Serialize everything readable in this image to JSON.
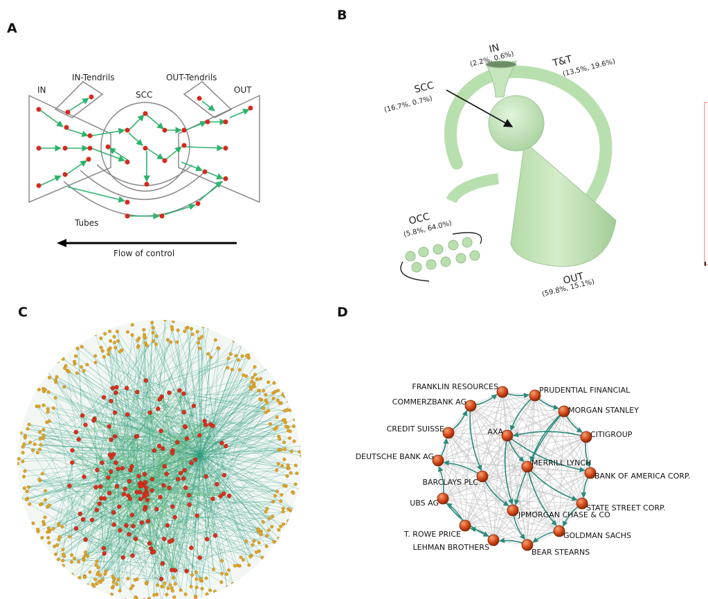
{
  "panels": {
    "a": {
      "letter": "A",
      "labels": {
        "in": "IN",
        "in_tendrils": "IN-Tendrils",
        "scc": "SCC",
        "out_tendrils": "OUT-Tendrils",
        "out": "OUT",
        "tubes": "Tubes",
        "flow": "Flow of control"
      }
    },
    "b": {
      "letter": "B",
      "labels": {
        "in_name": "IN",
        "in_pct": "(2.2%, 0.6%)",
        "tt_name": "T&T",
        "tt_pct": "(13.5%, 19.6%)",
        "scc_name": "SCC",
        "scc_pct": "(16.7%, 0.7%)",
        "occ_name": "OCC",
        "occ_pct": "(5.8%, 64.0%)",
        "out_name": "OUT",
        "out_pct": "(59.8%, 15.1%)"
      }
    },
    "c": {
      "letter": "C"
    },
    "d": {
      "letter": "D",
      "nodes": [
        "FRANKLIN RESOURCES",
        "PRUDENTIAL FINANCIAL",
        "COMMERZBANK AG",
        "MORGAN STANLEY",
        "CREDIT SUISSE",
        "AXA",
        "CITIGROUP",
        "DEUTSCHE BANK AG",
        "MERRILL LYNCH",
        "BARCLAYS PLC",
        "BANK OF AMERICA CORP.",
        "UBS AG",
        "STATE STREET CORP.",
        "JPMORGAN CHASE & CO",
        "T. ROWE PRICE",
        "GOLDMAN SACHS",
        "LEHMAN BROTHERS",
        "BEAR STEARNS"
      ]
    }
  },
  "colors": {
    "arrow": "#2db36b",
    "node": "#d62a1e",
    "ring": "#888888",
    "shape_fill": "#c6e6bd",
    "shape_edge": "#9fc796",
    "net_edge": "#2a9a80",
    "net_node_core": "#d8301c",
    "net_node_periphery": "#e0a526",
    "d_gray_edge": "#c8c8c8",
    "d_teal_edge": "#2a8a7c",
    "d_node": "#c23a10",
    "side_box": "#f1a5a5"
  }
}
